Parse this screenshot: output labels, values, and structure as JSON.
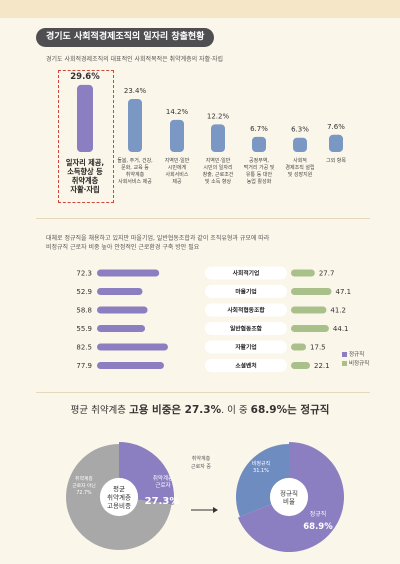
{
  "section_title": "경기도 사회적경제조직의 일자리 창출현황",
  "chart_data": [
    {
      "type": "bar",
      "note": "경기도 사회적경제조직의 대표적인 사회적목적은 취약계층의 자활·자립",
      "categories": [
        "일자리 제공, 소득향상 등 취약계층 자활·자립",
        "돌봄, 주거, 건강, 문화, 교육 등 취약계층 사회서비스 제공",
        "지역민·일반 시민에게 사회서비스 제공",
        "지역민·일반 시민의 일자리 창출, 근로조건 및 소득 향상",
        "공정무역, 먹거리 가공 및 유통 등 대안 농업 활성화",
        "사회적 경제조직 설립 및 성장지원",
        "그외 항목"
      ],
      "category_lines": [
        [
          "일자리 제공,",
          "소득향상 등",
          "취약계층",
          "자활·자립"
        ],
        [
          "돌봄, 주거, 건강,",
          "문화, 교육 등",
          "취약계층",
          "사회서비스 제공"
        ],
        [
          "지역민·일반",
          "시민에게",
          "사회서비스",
          "제공"
        ],
        [
          "지역민·일반",
          "시민의 일자리",
          "창출, 근로조건",
          "및 소득 향상"
        ],
        [
          "공정무역,",
          "먹거리 가공 및",
          "유통 등 대안",
          "농업 활성화"
        ],
        [
          "사회적",
          "경제조직 설립",
          "및 성장지원"
        ],
        [
          "그외 항목"
        ]
      ],
      "values": [
        29.6,
        23.4,
        14.2,
        12.2,
        6.7,
        6.3,
        7.6
      ],
      "value_labels": [
        "29.6%",
        "23.4%",
        "14.2%",
        "12.2%",
        "6.7%",
        "6.3%",
        "7.6%"
      ],
      "highlight_index": 0,
      "colors": {
        "highlight": "#8c7fc1",
        "normal": "#7b97c4"
      },
      "ylim": [
        0,
        30
      ]
    },
    {
      "type": "bar",
      "orientation": "horizontal-diverging",
      "note_lines": [
        "대체로 정규직을 채용하고 있지만 마을기업, 일반협동조합과 같이 조직유형과 규모에 따라",
        "비정규직 근로자 비중 높아 안정적인 근로환경 구축 방안 필요"
      ],
      "categories": [
        "사회적기업",
        "마을기업",
        "사회적협동조합",
        "일반협동조합",
        "자활기업",
        "소셜벤처"
      ],
      "series": [
        {
          "name": "정규직",
          "values": [
            72.3,
            52.9,
            58.8,
            55.9,
            82.5,
            77.9
          ],
          "color": "#8c7fc1"
        },
        {
          "name": "비정규직",
          "values": [
            27.7,
            47.1,
            41.2,
            44.1,
            17.5,
            22.1
          ],
          "color": "#a9c08a"
        }
      ],
      "xlim": [
        0,
        100
      ]
    },
    {
      "type": "pie",
      "center_lines": [
        "평균",
        "취약계층",
        "고용비중"
      ],
      "slices": [
        {
          "name": "취약계층 근로자 아닌",
          "value": 72.7,
          "label_lines": [
            "취약계층",
            "근로자 아닌",
            "72.7%"
          ],
          "color": "#a8a8a8"
        },
        {
          "name": "취약계층 근로자",
          "value": 27.3,
          "label_lines": [
            "취약계층",
            "근로자"
          ],
          "value_label": "27.3%",
          "color": "#8c7fc1"
        }
      ]
    },
    {
      "type": "pie",
      "center_lines": [
        "정규직",
        "비율"
      ],
      "slices": [
        {
          "name": "비정규직",
          "value": 31.1,
          "label_lines": [
            "비정규직",
            "31.1%"
          ],
          "color": "#6e8cc0"
        },
        {
          "name": "정규직",
          "value": 68.9,
          "label_lines": [
            "정규직"
          ],
          "value_label": "68.9%",
          "color": "#8c7fc1"
        }
      ]
    }
  ],
  "headline": {
    "prefix": "평균 취약계층 ",
    "bold1": "고용 비중은 27.3%",
    "middle": ". 이 중 ",
    "bold2": "68.9%는 정규직"
  },
  "arrow_label": [
    "취약계층",
    "근로자 중"
  ]
}
